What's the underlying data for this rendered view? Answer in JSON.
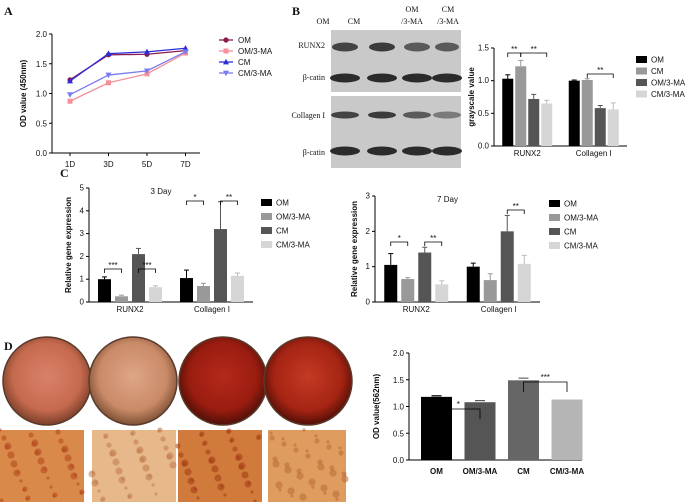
{
  "panel_letters": [
    "A",
    "B",
    "C",
    "D"
  ],
  "colors": {
    "OM_line": "#8b1c4e",
    "OM3MA_line": "#f4909a",
    "CM_line": "#2c2cd8",
    "CM3MA_line": "#7b7bf0",
    "bar_black": "#000000",
    "bar_grey": "#999999",
    "bar_dark": "#555555",
    "bar_light": "#d6d6d6",
    "blot_bg": "#c9c9c9",
    "band": "#2b2b2b"
  },
  "chart_data": [
    {
      "id": "A",
      "type": "line",
      "ylabel": "OD value (450nm)",
      "x": [
        "1D",
        "3D",
        "5D",
        "7D"
      ],
      "ylim": [
        0,
        2.0
      ],
      "yticks": [
        "0.0",
        "0.5",
        "1.0",
        "1.5",
        "2.0"
      ],
      "series": [
        {
          "name": "OM",
          "values": [
            1.23,
            1.65,
            1.66,
            1.72
          ],
          "color": "#8b1c4e",
          "marker": "circle"
        },
        {
          "name": "OM/3-MA",
          "values": [
            0.87,
            1.18,
            1.33,
            1.68
          ],
          "color": "#f4909a",
          "marker": "square"
        },
        {
          "name": "CM",
          "values": [
            1.21,
            1.67,
            1.7,
            1.76
          ],
          "color": "#2c2cd8",
          "marker": "triangle-up"
        },
        {
          "name": "CM/3-MA",
          "values": [
            0.98,
            1.31,
            1.38,
            1.7
          ],
          "color": "#7b7bf0",
          "marker": "triangle-down"
        }
      ]
    },
    {
      "id": "B",
      "type": "bar",
      "ylabel": "grayscale value",
      "categories": [
        "RUNX2",
        "Collagen I"
      ],
      "ylim": [
        0,
        1.5
      ],
      "yticks": [
        "0.0",
        "0.5",
        "1.0",
        "1.5"
      ],
      "series": [
        {
          "name": "OM",
          "values": [
            1.03,
            1.0
          ],
          "errors": [
            0.06,
            0.01
          ],
          "color": "#000000"
        },
        {
          "name": "CM",
          "values": [
            1.22,
            1.01
          ],
          "errors": [
            0.09,
            0.02
          ],
          "color": "#999999"
        },
        {
          "name": "OM/3-MA",
          "values": [
            0.72,
            0.58
          ],
          "errors": [
            0.07,
            0.04
          ],
          "color": "#555555"
        },
        {
          "name": "CM/3-MA",
          "values": [
            0.65,
            0.56
          ],
          "errors": [
            0.05,
            0.1
          ],
          "color": "#d6d6d6"
        }
      ],
      "significance": [
        {
          "cat": 0,
          "from": 0,
          "to": 1,
          "label": "**"
        },
        {
          "cat": 0,
          "from": 1,
          "to": 3,
          "label": "**"
        },
        {
          "cat": 1,
          "from": 1,
          "to": 3,
          "label": "**"
        }
      ]
    },
    {
      "id": "C1",
      "type": "bar",
      "title": "3 Day",
      "ylabel": "Relative gene expression",
      "categories": [
        "RUNX2",
        "Collagen I"
      ],
      "ylim": [
        0,
        5
      ],
      "yticks": [
        "0",
        "1",
        "2",
        "3",
        "4",
        "5"
      ],
      "series": [
        {
          "name": "OM",
          "values": [
            1.0,
            1.05
          ],
          "errors": [
            0.1,
            0.35
          ],
          "color": "#000000"
        },
        {
          "name": "OM/3-MA",
          "values": [
            0.25,
            0.7
          ],
          "errors": [
            0.05,
            0.12
          ],
          "color": "#999999"
        },
        {
          "name": "CM",
          "values": [
            2.1,
            3.2
          ],
          "errors": [
            0.25,
            1.2
          ],
          "color": "#555555"
        },
        {
          "name": "CM/3-MA",
          "values": [
            0.65,
            1.15
          ],
          "errors": [
            0.06,
            0.12
          ],
          "color": "#d6d6d6"
        }
      ],
      "significance": [
        {
          "cat": 0,
          "from": 0,
          "to": 1,
          "label": "***"
        },
        {
          "cat": 0,
          "from": 2,
          "to": 3,
          "label": "***"
        },
        {
          "cat": 1,
          "from": 0,
          "to": 1,
          "label": "*"
        },
        {
          "cat": 1,
          "from": 2,
          "to": 3,
          "label": "**"
        }
      ]
    },
    {
      "id": "C2",
      "type": "bar",
      "title": "7 Day",
      "ylabel": "Relative gene expression",
      "categories": [
        "RUNX2",
        "Collagen I"
      ],
      "ylim": [
        0,
        3
      ],
      "yticks": [
        "0",
        "1",
        "2",
        "3"
      ],
      "series": [
        {
          "name": "OM",
          "values": [
            1.05,
            1.0
          ],
          "errors": [
            0.32,
            0.1
          ],
          "color": "#000000"
        },
        {
          "name": "OM/3-MA",
          "values": [
            0.65,
            0.62
          ],
          "errors": [
            0.04,
            0.18
          ],
          "color": "#999999"
        },
        {
          "name": "CM",
          "values": [
            1.4,
            2.0
          ],
          "errors": [
            0.15,
            0.45
          ],
          "color": "#555555"
        },
        {
          "name": "CM/3-MA",
          "values": [
            0.5,
            1.08
          ],
          "errors": [
            0.1,
            0.24
          ],
          "color": "#d6d6d6"
        }
      ],
      "significance": [
        {
          "cat": 0,
          "from": 0,
          "to": 1,
          "label": "*"
        },
        {
          "cat": 0,
          "from": 2,
          "to": 3,
          "label": "**"
        },
        {
          "cat": 1,
          "from": 2,
          "to": 3,
          "label": "**"
        }
      ]
    },
    {
      "id": "D",
      "type": "bar",
      "ylabel": "OD value(562nm)",
      "categories": [
        "OM",
        "OM/3-MA",
        "CM",
        "CM/3-MA"
      ],
      "ylim": [
        0,
        2.0
      ],
      "yticks": [
        "0.0",
        "0.5",
        "1.0",
        "1.5",
        "2.0"
      ],
      "values": [
        1.18,
        1.08,
        1.49,
        1.13
      ],
      "errors": [
        0.02,
        0.03,
        0.04,
        0.0
      ],
      "colors": [
        "#000000",
        "#555555",
        "#666666",
        "#b5b5b5"
      ],
      "significance": [
        {
          "from": 0,
          "to": 1,
          "label": "*"
        },
        {
          "from": 2,
          "to": 3,
          "label": "***"
        }
      ]
    }
  ],
  "blot": {
    "lane_labels": [
      "OM",
      "CM",
      "OM\n/3-MA",
      "CM\n/3-MA"
    ],
    "row_labels": [
      "RUNX2",
      "β-catin",
      "Collagen I",
      "β-catin"
    ]
  }
}
